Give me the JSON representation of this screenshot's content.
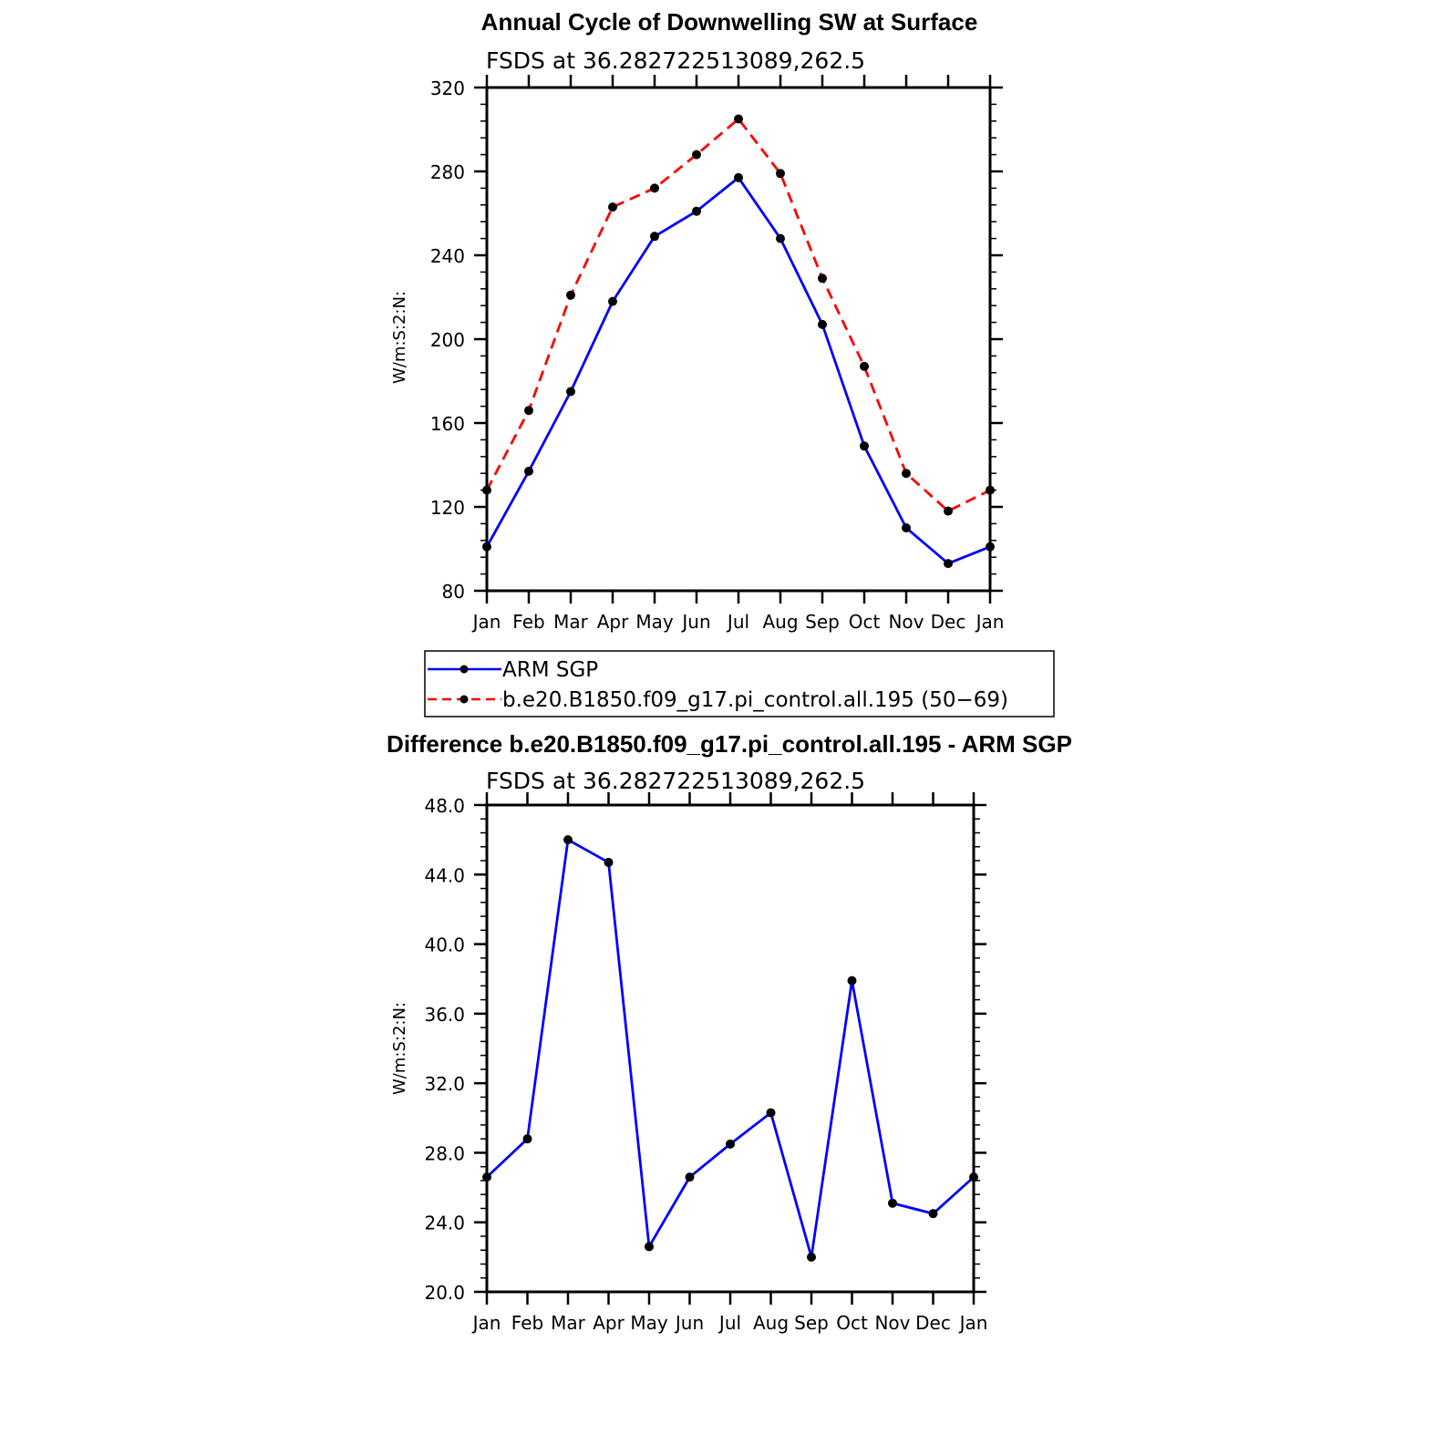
{
  "chart_data": [
    {
      "type": "line",
      "title": "Annual Cycle of Downwelling SW at Surface",
      "subtitle": "FSDS at 36.282722513089,262.5",
      "ylabel": "W/m:S:2:N:",
      "xlabel": "",
      "categories": [
        "Jan",
        "Feb",
        "Mar",
        "Apr",
        "May",
        "Jun",
        "Jul",
        "Aug",
        "Sep",
        "Oct",
        "Nov",
        "Dec",
        "Jan"
      ],
      "ylim": [
        80,
        320
      ],
      "yticks": [
        80,
        120,
        160,
        200,
        240,
        280,
        320
      ],
      "series": [
        {
          "name": "ARM SGP",
          "color": "#0000ff",
          "dash": "solid",
          "values": [
            101,
            137,
            175,
            218,
            249,
            261,
            277,
            248,
            207,
            149,
            110,
            93,
            101
          ]
        },
        {
          "name": "b.e20.B1850.f09_g17.pi_control.all.195 (50−69)",
          "color": "#ff0000",
          "dash": "dashed",
          "values": [
            128,
            166,
            221,
            263,
            272,
            288,
            305,
            279,
            229,
            187,
            136,
            118,
            128
          ]
        }
      ],
      "legend": "below"
    },
    {
      "type": "line",
      "title": "Difference b.e20.B1850.f09_g17.pi_control.all.195 - ARM SGP",
      "subtitle": "FSDS at 36.282722513089,262.5",
      "ylabel": "W/m:S:2:N:",
      "xlabel": "",
      "categories": [
        "Jan",
        "Feb",
        "Mar",
        "Apr",
        "May",
        "Jun",
        "Jul",
        "Aug",
        "Sep",
        "Oct",
        "Nov",
        "Dec",
        "Jan"
      ],
      "ylim": [
        20,
        48
      ],
      "yticks": [
        "20.0",
        "24.0",
        "28.0",
        "32.0",
        "36.0",
        "40.0",
        "44.0",
        "48.0"
      ],
      "series": [
        {
          "color": "#0000ff",
          "dash": "solid",
          "values": [
            26.6,
            28.8,
            46.0,
            44.7,
            22.6,
            26.6,
            28.5,
            30.3,
            22.0,
            37.9,
            25.1,
            24.5,
            26.6
          ]
        }
      ]
    }
  ]
}
